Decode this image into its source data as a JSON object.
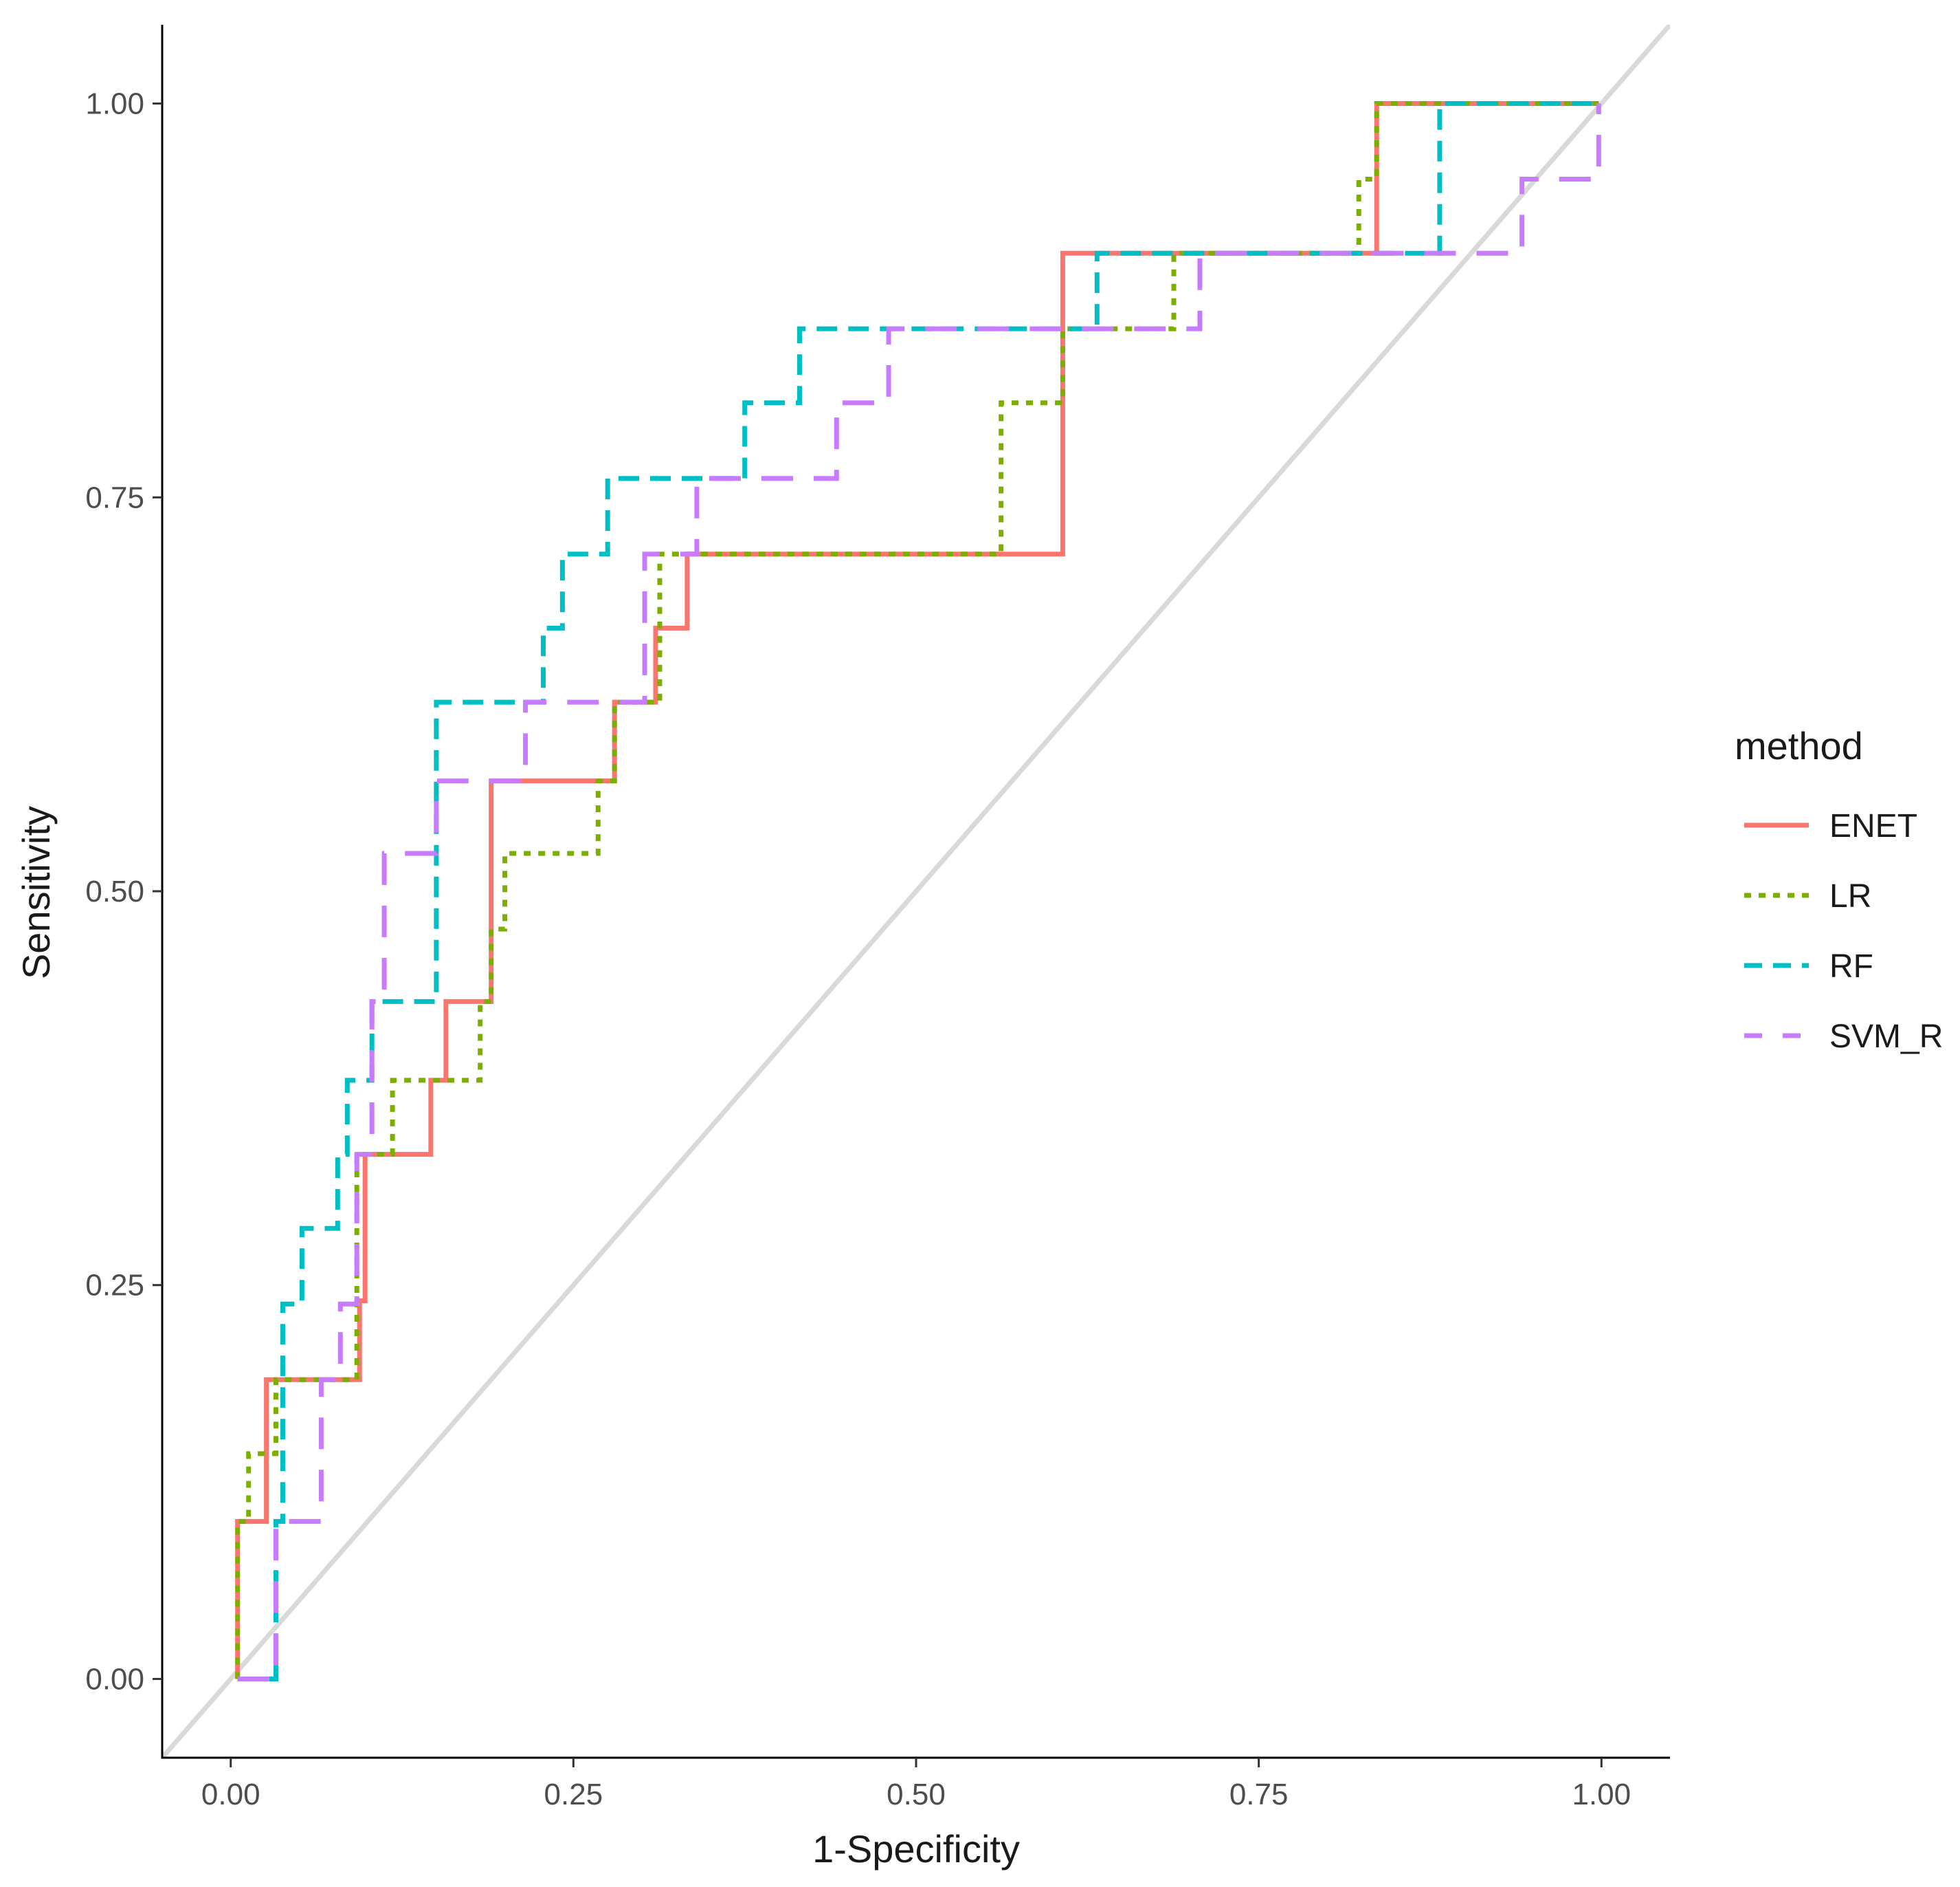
{
  "chart_data": {
    "type": "line",
    "title": "",
    "xlabel": "1-Specificity",
    "ylabel": "Sensitivity",
    "xlim": [
      -0.05,
      1.05
    ],
    "ylim": [
      -0.05,
      1.05
    ],
    "xticks": [
      "0.00",
      "0.25",
      "0.50",
      "0.75",
      "1.00"
    ],
    "yticks": [
      "0.00",
      "0.25",
      "0.50",
      "0.75",
      "1.00"
    ],
    "grid": false,
    "diagonal_reference": {
      "color": "#d9d9d9"
    },
    "legend": {
      "title": "method",
      "position": "right"
    },
    "series": [
      {
        "name": "ENET",
        "color": "#F8766D",
        "dash": "solid",
        "points": [
          [
            0.005,
            0
          ],
          [
            0.005,
            0.1
          ],
          [
            0.026,
            0.1
          ],
          [
            0.026,
            0.19
          ],
          [
            0.094,
            0.19
          ],
          [
            0.094,
            0.24
          ],
          [
            0.098,
            0.24
          ],
          [
            0.098,
            0.333
          ],
          [
            0.146,
            0.333
          ],
          [
            0.146,
            0.38
          ],
          [
            0.157,
            0.38
          ],
          [
            0.157,
            0.43
          ],
          [
            0.19,
            0.43
          ],
          [
            0.19,
            0.57
          ],
          [
            0.28,
            0.57
          ],
          [
            0.28,
            0.62
          ],
          [
            0.31,
            0.62
          ],
          [
            0.31,
            0.667
          ],
          [
            0.333,
            0.667
          ],
          [
            0.333,
            0.714
          ],
          [
            0.607,
            0.714
          ],
          [
            0.607,
            0.905
          ],
          [
            0.836,
            0.905
          ],
          [
            0.836,
            1.0
          ],
          [
            0.998,
            1.0
          ]
        ]
      },
      {
        "name": "LR",
        "color": "#7CAE00",
        "dash": "dotted",
        "points": [
          [
            0.005,
            0
          ],
          [
            0.005,
            0.1
          ],
          [
            0.013,
            0.1
          ],
          [
            0.013,
            0.143
          ],
          [
            0.033,
            0.143
          ],
          [
            0.033,
            0.19
          ],
          [
            0.092,
            0.19
          ],
          [
            0.092,
            0.333
          ],
          [
            0.118,
            0.333
          ],
          [
            0.118,
            0.38
          ],
          [
            0.182,
            0.38
          ],
          [
            0.182,
            0.43
          ],
          [
            0.19,
            0.43
          ],
          [
            0.19,
            0.476
          ],
          [
            0.2,
            0.476
          ],
          [
            0.2,
            0.524
          ],
          [
            0.268,
            0.524
          ],
          [
            0.268,
            0.57
          ],
          [
            0.28,
            0.57
          ],
          [
            0.28,
            0.62
          ],
          [
            0.313,
            0.62
          ],
          [
            0.313,
            0.714
          ],
          [
            0.562,
            0.714
          ],
          [
            0.562,
            0.81
          ],
          [
            0.607,
            0.81
          ],
          [
            0.607,
            0.857
          ],
          [
            0.688,
            0.857
          ],
          [
            0.688,
            0.905
          ],
          [
            0.823,
            0.905
          ],
          [
            0.823,
            0.952
          ],
          [
            0.836,
            0.952
          ],
          [
            0.836,
            1.0
          ],
          [
            0.998,
            1.0
          ]
        ]
      },
      {
        "name": "RF",
        "color": "#00BFC4",
        "dash": "dashed",
        "points": [
          [
            0.005,
            0
          ],
          [
            0.033,
            0
          ],
          [
            0.033,
            0.1
          ],
          [
            0.038,
            0.1
          ],
          [
            0.038,
            0.238
          ],
          [
            0.052,
            0.238
          ],
          [
            0.052,
            0.286
          ],
          [
            0.078,
            0.286
          ],
          [
            0.078,
            0.333
          ],
          [
            0.085,
            0.333
          ],
          [
            0.085,
            0.38
          ],
          [
            0.103,
            0.38
          ],
          [
            0.103,
            0.43
          ],
          [
            0.15,
            0.43
          ],
          [
            0.15,
            0.62
          ],
          [
            0.228,
            0.62
          ],
          [
            0.228,
            0.667
          ],
          [
            0.242,
            0.667
          ],
          [
            0.242,
            0.714
          ],
          [
            0.275,
            0.714
          ],
          [
            0.275,
            0.762
          ],
          [
            0.375,
            0.762
          ],
          [
            0.375,
            0.81
          ],
          [
            0.415,
            0.81
          ],
          [
            0.415,
            0.857
          ],
          [
            0.632,
            0.857
          ],
          [
            0.632,
            0.905
          ],
          [
            0.882,
            0.905
          ],
          [
            0.882,
            1.0
          ],
          [
            0.998,
            1.0
          ]
        ]
      },
      {
        "name": "SVM_R",
        "color": "#C77CFF",
        "dash": "longdash",
        "points": [
          [
            0.005,
            0
          ],
          [
            0.033,
            0
          ],
          [
            0.033,
            0.1
          ],
          [
            0.066,
            0.1
          ],
          [
            0.066,
            0.19
          ],
          [
            0.08,
            0.19
          ],
          [
            0.08,
            0.238
          ],
          [
            0.092,
            0.238
          ],
          [
            0.092,
            0.333
          ],
          [
            0.103,
            0.333
          ],
          [
            0.103,
            0.43
          ],
          [
            0.112,
            0.43
          ],
          [
            0.112,
            0.524
          ],
          [
            0.15,
            0.524
          ],
          [
            0.15,
            0.57
          ],
          [
            0.215,
            0.57
          ],
          [
            0.215,
            0.62
          ],
          [
            0.302,
            0.62
          ],
          [
            0.302,
            0.714
          ],
          [
            0.34,
            0.714
          ],
          [
            0.34,
            0.762
          ],
          [
            0.442,
            0.762
          ],
          [
            0.442,
            0.81
          ],
          [
            0.48,
            0.81
          ],
          [
            0.48,
            0.857
          ],
          [
            0.707,
            0.857
          ],
          [
            0.707,
            0.905
          ],
          [
            0.942,
            0.905
          ],
          [
            0.942,
            0.952
          ],
          [
            0.998,
            0.952
          ],
          [
            0.998,
            1.0
          ]
        ]
      }
    ]
  }
}
